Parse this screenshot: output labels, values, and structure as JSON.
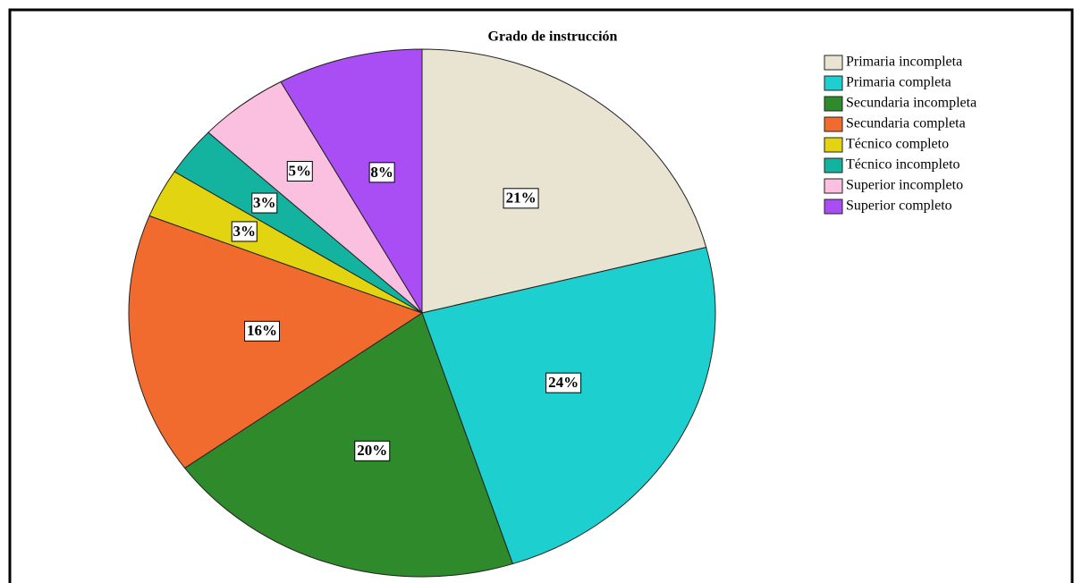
{
  "chart_data": {
    "type": "pie",
    "title": "Grado de instrucción",
    "categories": [
      "Primaria incompleta",
      "Primaria completa",
      "Secundaria incompleta",
      "Secundaria completa",
      "Técnico completo",
      "Técnico incompleto",
      "Superior incompleto",
      "Superior completo"
    ],
    "values": [
      21,
      24,
      20,
      16,
      3,
      3,
      5,
      8
    ],
    "value_labels": [
      "21%",
      "24%",
      "20%",
      "16%",
      "3%",
      "3%",
      "5%",
      "8%"
    ],
    "colors": [
      "#e9e4d2",
      "#1ecfcf",
      "#2e8a2a",
      "#f26b2e",
      "#e2d410",
      "#13b3a0",
      "#fbbfe0",
      "#a94ef5"
    ],
    "legend": "top-right"
  }
}
